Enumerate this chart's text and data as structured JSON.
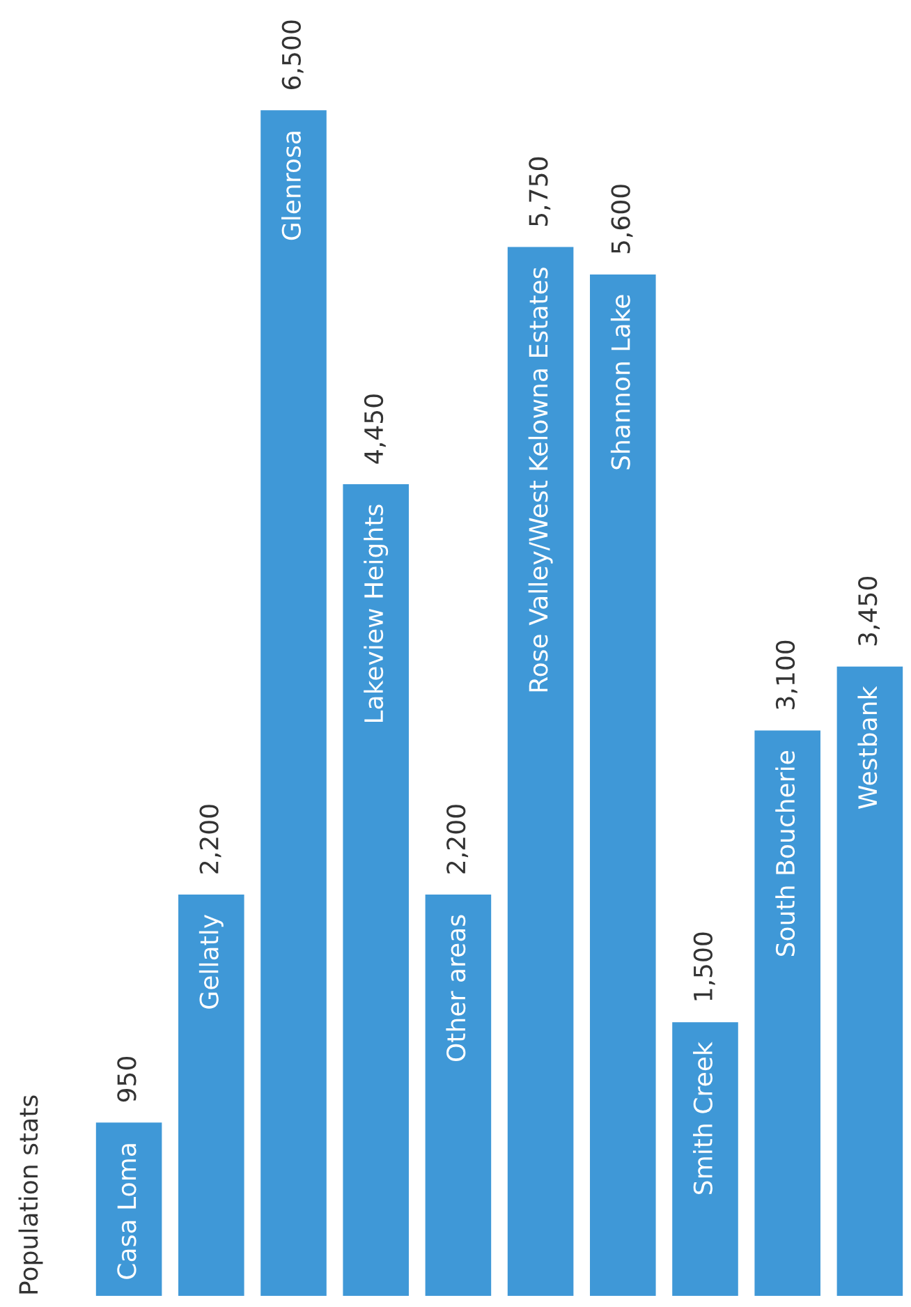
{
  "chart_data": {
    "type": "bar",
    "title": "Population stats",
    "categories": [
      "Casa Loma",
      "Gellatly",
      "Glenrosa",
      "Lakeview Heights",
      "Other areas",
      "Rose Valley/West Kelowna Estates",
      "Shannon Lake",
      "Smith Creek",
      "South Boucherie",
      "Westbank"
    ],
    "values": [
      950,
      2200,
      6500,
      4450,
      2200,
      5750,
      5600,
      1500,
      3100,
      3450
    ],
    "value_labels": [
      "950",
      "2,200",
      "6,500",
      "4,450",
      "2,200",
      "5,750",
      "5,600",
      "1,500",
      "3,100",
      "3,450"
    ],
    "color": "#3f98d7"
  }
}
